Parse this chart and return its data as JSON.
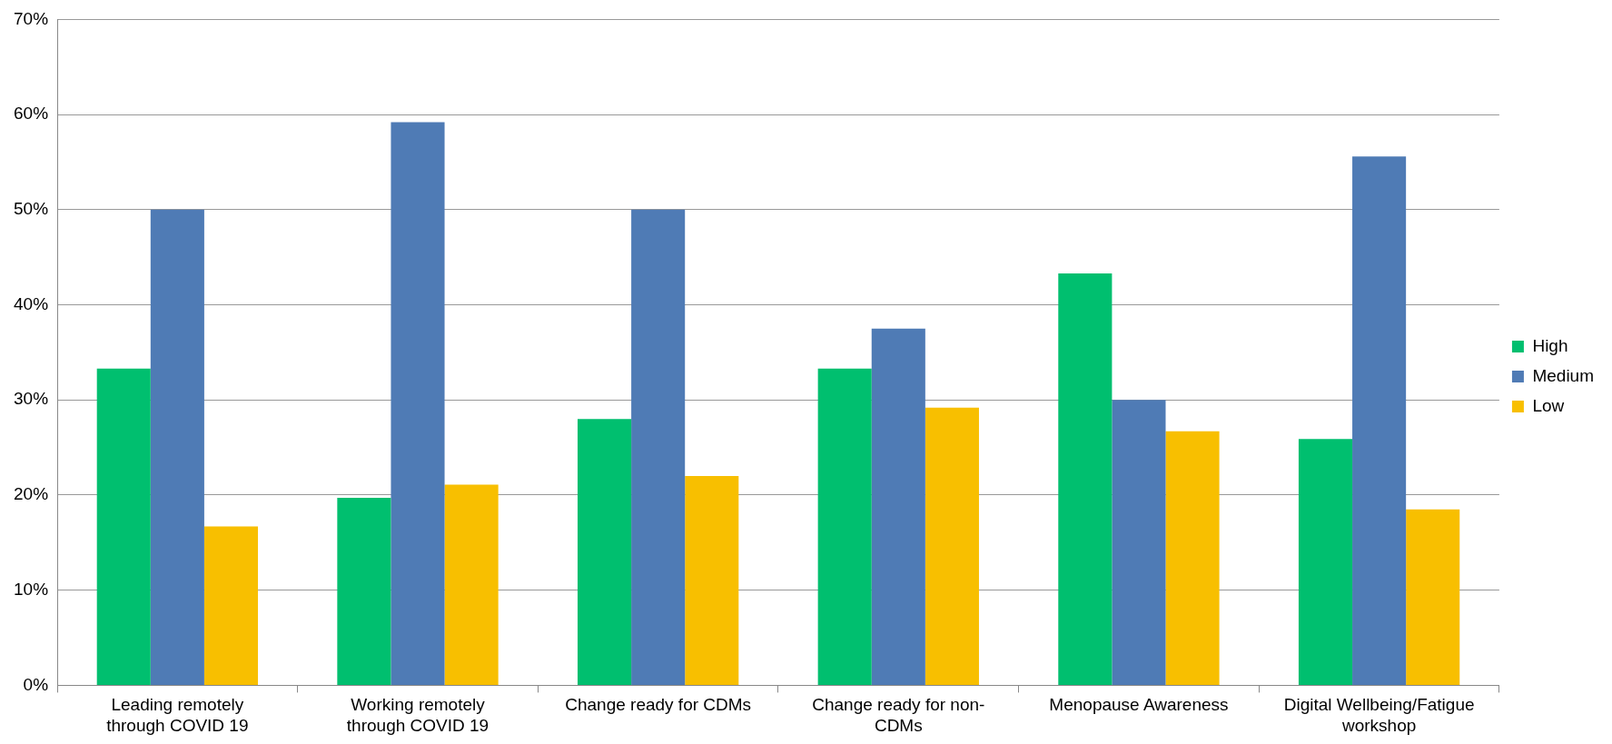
{
  "chart_data": {
    "type": "bar",
    "categories": [
      "Leading remotely through COVID 19",
      "Working remotely through COVID 19",
      "Change ready for CDMs",
      "Change ready for non-CDMs",
      "Menopause Awareness",
      "Digital Wellbeing/Fatigue workshop"
    ],
    "series": [
      {
        "name": "High",
        "color": "#00bf6f",
        "values": [
          33.3,
          19.7,
          28,
          33.3,
          43.3,
          25.9
        ]
      },
      {
        "name": "Medium",
        "color": "#4f7bb5",
        "values": [
          50,
          59.2,
          50,
          37.5,
          30,
          55.6
        ]
      },
      {
        "name": "Low",
        "color": "#f8bf00",
        "values": [
          16.7,
          21.1,
          22,
          29.2,
          26.7,
          18.5
        ]
      }
    ],
    "ylim": [
      0,
      70
    ],
    "yticks": [
      {
        "value": 0,
        "label": "0%"
      },
      {
        "value": 10,
        "label": "10%"
      },
      {
        "value": 20,
        "label": "20%"
      },
      {
        "value": 30,
        "label": "30%"
      },
      {
        "value": 40,
        "label": "40%"
      },
      {
        "value": 50,
        "label": "50%"
      },
      {
        "value": 60,
        "label": "60%"
      },
      {
        "value": 70,
        "label": "70%"
      }
    ],
    "grid": "y",
    "legend": "right"
  }
}
